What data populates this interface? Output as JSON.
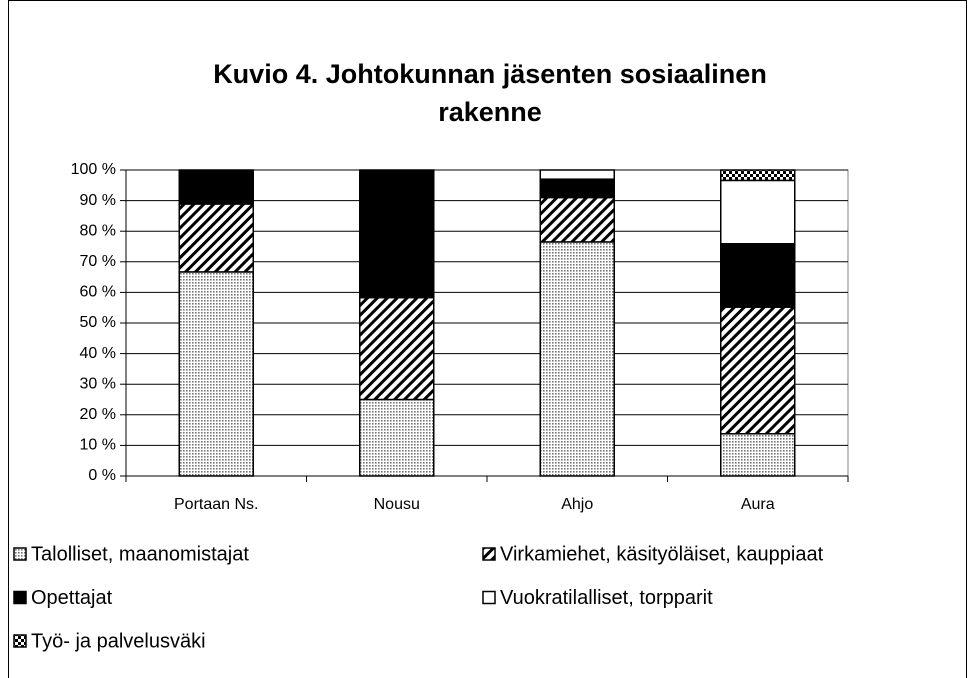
{
  "chart_data": {
    "type": "stacked_bar",
    "title": [
      "Kuvio 4. Johtokunnan jäsenten sosiaalinen",
      "rakenne"
    ],
    "categories": [
      "Portaan Ns.",
      "Nousu",
      "Ahjo",
      "Aura"
    ],
    "series": [
      {
        "name": "Talolliset, maanomistajat",
        "color": "#b0b0b0",
        "pattern": "dots",
        "values": [
          66.7,
          25,
          76.5,
          13.8
        ]
      },
      {
        "name": "Virkamiehet, käsityöläiset, kauppiaat",
        "color": "#000000",
        "pattern": "hatch",
        "values": [
          22.2,
          33.3,
          14.5,
          41.4
        ]
      },
      {
        "name": "Opettajat",
        "color": "#000000",
        "pattern": "solid",
        "values": [
          11.1,
          41.7,
          6,
          20.7
        ]
      },
      {
        "name": "Vuokratilalliset, torpparit",
        "color": "#ffffff",
        "pattern": "solid",
        "values": [
          0,
          0,
          3,
          20.7
        ]
      },
      {
        "name": "Työ- ja palvelusväki",
        "color": "#000000",
        "pattern": "checker",
        "values": [
          0,
          0,
          0,
          3.4
        ]
      }
    ],
    "ylim": [
      0,
      100
    ],
    "yticks": [
      {
        "value": 0,
        "label": "0 %"
      },
      {
        "value": 10,
        "label": "10 %"
      },
      {
        "value": 20,
        "label": "20 %"
      },
      {
        "value": 30,
        "label": "30 %"
      },
      {
        "value": 40,
        "label": "40 %"
      },
      {
        "value": 50,
        "label": "50 %"
      },
      {
        "value": 60,
        "label": "60 %"
      },
      {
        "value": 70,
        "label": "70 %"
      },
      {
        "value": 80,
        "label": "80 %"
      },
      {
        "value": 90,
        "label": "90 %"
      },
      {
        "value": 100,
        "label": "100 %"
      }
    ],
    "grid": true
  }
}
